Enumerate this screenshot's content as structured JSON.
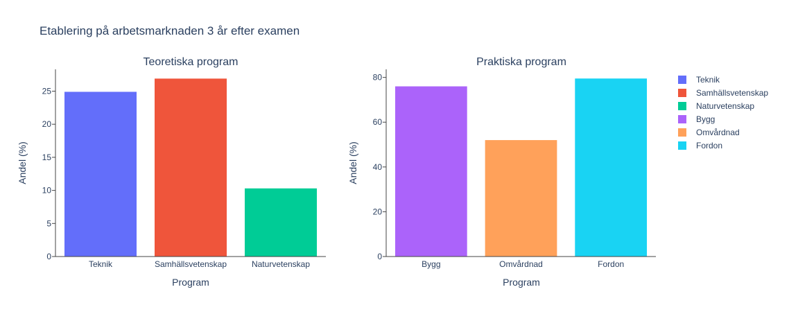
{
  "figure": {
    "title": "Etablering på arbetsmarknaden 3 år efter examen"
  },
  "chart_data": [
    {
      "type": "bar",
      "title": "Teoretiska program",
      "xlabel": "Program",
      "ylabel": "Andel (%)",
      "categories": [
        "Teknik",
        "Samhällsvetenskap",
        "Naturvetenskap"
      ],
      "values": [
        24.9,
        26.9,
        10.3
      ],
      "colors": [
        "#636efa",
        "#ef553b",
        "#00cc96"
      ],
      "ylim": [
        0,
        28.3
      ],
      "yticks": [
        0,
        5,
        10,
        15,
        20,
        25
      ]
    },
    {
      "type": "bar",
      "title": "Praktiska program",
      "xlabel": "Program",
      "ylabel": "Andel (%)",
      "categories": [
        "Bygg",
        "Omvårdnad",
        "Fordon"
      ],
      "values": [
        76,
        52,
        79.5
      ],
      "colors": [
        "#ab63fa",
        "#ffa15a",
        "#19d3f3"
      ],
      "ylim": [
        0,
        83.6
      ],
      "yticks": [
        0,
        20,
        40,
        60,
        80
      ]
    }
  ],
  "legend": {
    "position": "right",
    "items": [
      {
        "label": "Teknik",
        "color": "#636efa"
      },
      {
        "label": "Samhällsvetenskap",
        "color": "#ef553b"
      },
      {
        "label": "Naturvetenskap",
        "color": "#00cc96"
      },
      {
        "label": "Bygg",
        "color": "#ab63fa"
      },
      {
        "label": "Omvårdnad",
        "color": "#ffa15a"
      },
      {
        "label": "Fordon",
        "color": "#19d3f3"
      }
    ]
  }
}
